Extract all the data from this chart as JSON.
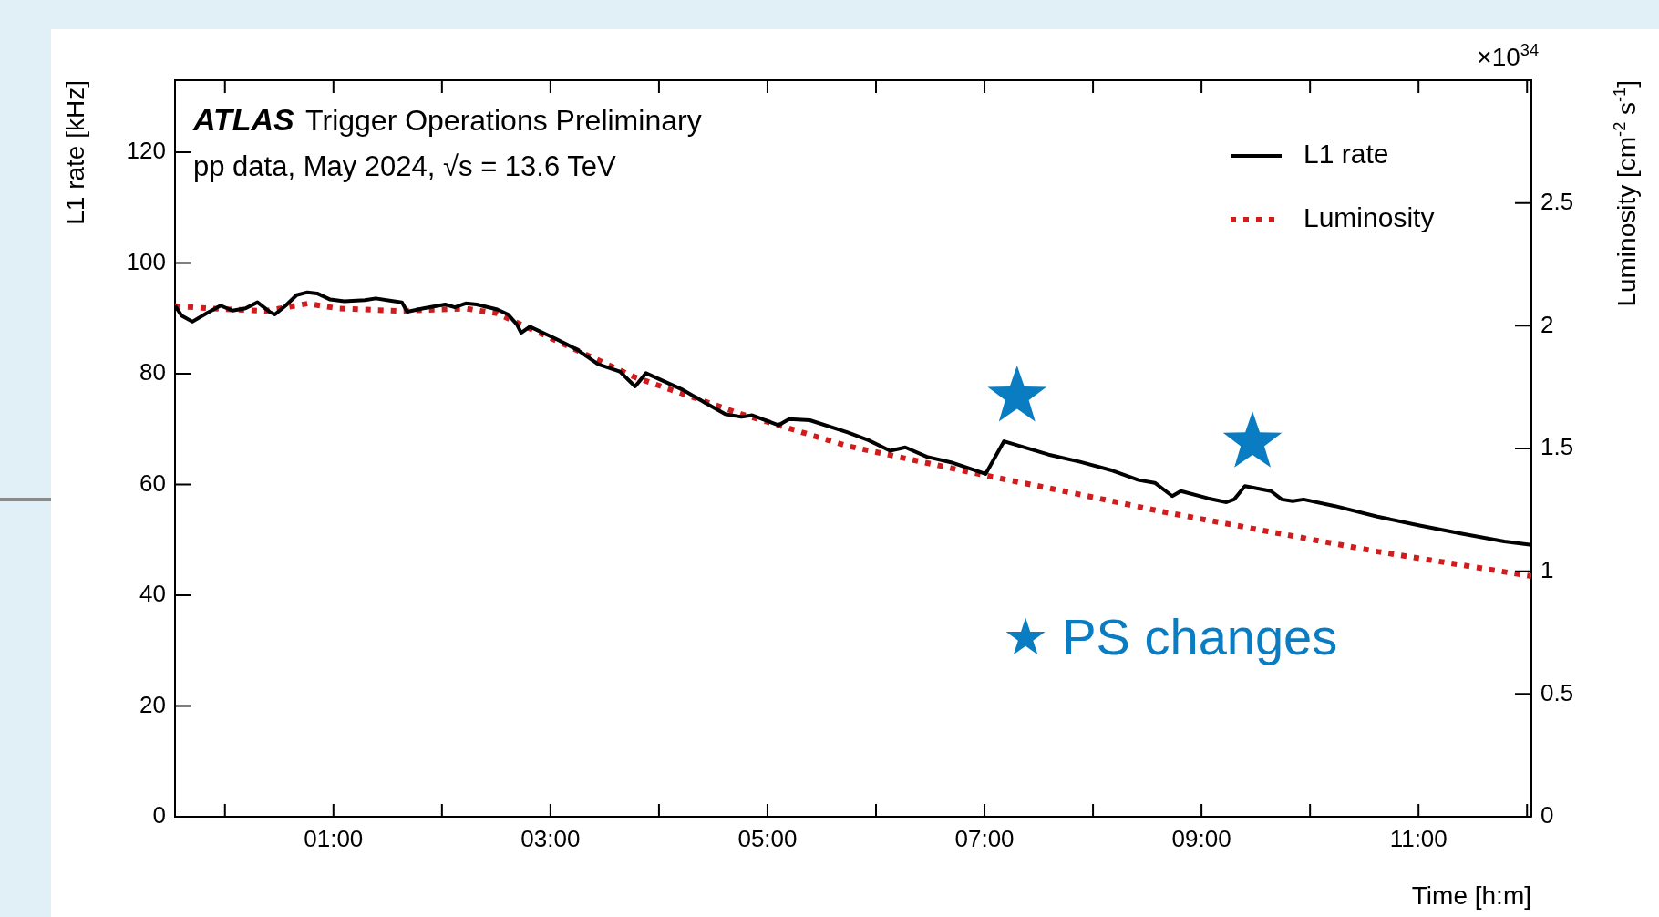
{
  "chart_data": {
    "type": "line",
    "xlabel": "Time [h:m]",
    "ylabel": "L1 rate [kHz]",
    "y2label": "Luminosity [cm$^{-2}$ s$^{-1}$]",
    "annotations": [
      "ATLAS Trigger Operations Preliminary",
      "pp data, May 2024, √s = 13.6 TeV",
      "×10$^{34}$",
      "★ PS changes"
    ],
    "xlim": [
      -0.46,
      12.04
    ],
    "xticks": [
      {
        "value": 0,
        "label": null
      },
      {
        "value": 1,
        "label": "01:00"
      },
      {
        "value": 2,
        "label": null
      },
      {
        "value": 3,
        "label": "03:00"
      },
      {
        "value": 4,
        "label": null
      },
      {
        "value": 5,
        "label": "05:00"
      },
      {
        "value": 6,
        "label": null
      },
      {
        "value": 7,
        "label": "07:00"
      },
      {
        "value": 8,
        "label": null
      },
      {
        "value": 9,
        "label": "09:00"
      },
      {
        "value": 10,
        "label": null
      },
      {
        "value": 11,
        "label": "11:00"
      },
      {
        "value": 12,
        "label": null
      }
    ],
    "ylim": [
      0,
      133
    ],
    "yticks": [
      0,
      20,
      40,
      60,
      80,
      100,
      120
    ],
    "y2lim": [
      0,
      3
    ],
    "y2ticks": [
      0,
      0.5,
      1,
      1.5,
      2,
      2.5
    ],
    "grid": false,
    "legend": "top right",
    "marker": "none",
    "series": [
      {
        "name": "L1 rate",
        "color": "#000000",
        "line_style": "solid",
        "x": [
          -0.46,
          -0.4,
          -0.3,
          -0.17,
          -0.04,
          0.07,
          0.19,
          0.3,
          0.41,
          0.46,
          0.56,
          0.66,
          0.76,
          0.85,
          0.97,
          1.1,
          1.29,
          1.39,
          1.56,
          1.63,
          1.68,
          1.83,
          2.03,
          2.12,
          2.22,
          2.32,
          2.51,
          2.61,
          2.69,
          2.73,
          2.81,
          3.05,
          3.25,
          3.44,
          3.64,
          3.78,
          3.88,
          4.22,
          4.42,
          4.61,
          4.76,
          4.86,
          5.1,
          5.2,
          5.39,
          5.74,
          5.93,
          6.13,
          6.27,
          6.47,
          6.71,
          7.01,
          7.18,
          7.59,
          7.88,
          8.18,
          8.42,
          8.57,
          8.67,
          8.73,
          8.81,
          9.06,
          9.23,
          9.3,
          9.4,
          9.64,
          9.74,
          9.84,
          9.94,
          10.23,
          10.62,
          11.01,
          11.4,
          11.79,
          12.04
        ],
        "values": [
          92.3,
          90.5,
          89.4,
          90.9,
          92.3,
          91.4,
          91.8,
          92.9,
          91.2,
          90.7,
          92.3,
          94.2,
          94.7,
          94.5,
          93.4,
          93.1,
          93.3,
          93.6,
          93.1,
          92.9,
          91.2,
          91.8,
          92.5,
          92.0,
          92.7,
          92.5,
          91.6,
          90.7,
          88.9,
          87.4,
          88.5,
          86.3,
          84.3,
          81.7,
          80.4,
          77.7,
          80.1,
          77.1,
          74.8,
          72.7,
          72.2,
          72.5,
          70.7,
          71.8,
          71.6,
          69.4,
          68.0,
          66.1,
          66.7,
          65.0,
          63.9,
          61.9,
          67.8,
          65.4,
          64.1,
          62.5,
          60.8,
          60.3,
          58.8,
          57.9,
          58.8,
          57.5,
          56.8,
          57.3,
          59.7,
          58.8,
          57.3,
          57.0,
          57.3,
          56.1,
          54.2,
          52.6,
          51.1,
          49.7,
          49.1
        ]
      },
      {
        "name": "Luminosity",
        "color": "#d01c1c",
        "line_style": "dotted",
        "axis": "y2",
        "x": [
          -0.46,
          -0.12,
          0.37,
          0.76,
          1.05,
          1.63,
          2.22,
          2.51,
          3.0,
          3.78,
          4.76,
          5.74,
          7.01,
          7.69,
          8.67,
          9.64,
          10.62,
          12.04
        ],
        "values": [
          2.08,
          2.07,
          2.06,
          2.09,
          2.07,
          2.06,
          2.07,
          2.05,
          1.95,
          1.79,
          1.64,
          1.51,
          1.39,
          1.33,
          1.24,
          1.16,
          1.08,
          0.98
        ]
      },
      {
        "type": "scatter",
        "color": "#0a7dc2",
        "marker": "star",
        "x": [
          7.3,
          9.47
        ],
        "values": [
          75.9,
          67.6
        ]
      }
    ]
  }
}
